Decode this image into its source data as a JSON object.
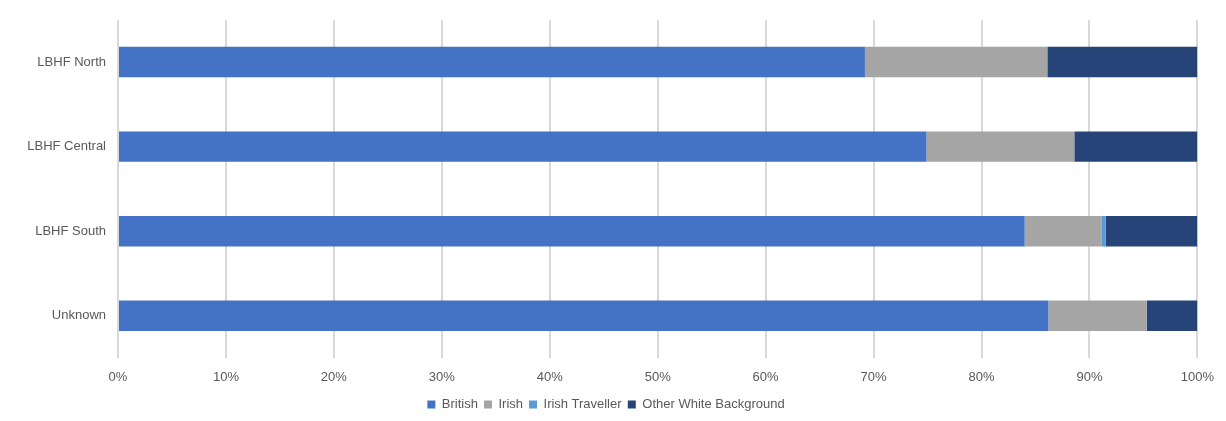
{
  "chart_data": {
    "type": "bar",
    "orientation": "horizontal",
    "stacked": true,
    "categories": [
      "LBHF North",
      "LBHF Central",
      "LBHF South",
      "Unknown"
    ],
    "series": [
      {
        "name": "British",
        "color": "#4472c4",
        "values": [
          69.2,
          74.9,
          84.0,
          86.2
        ]
      },
      {
        "name": "Irish",
        "color": "#a5a5a5",
        "values": [
          16.9,
          13.7,
          7.1,
          9.1
        ]
      },
      {
        "name": "Irish Traveller",
        "color": "#5b9bd5",
        "values": [
          0,
          0,
          0.4,
          0
        ]
      },
      {
        "name": "Other White Background",
        "color": "#264478",
        "values": [
          13.9,
          11.4,
          8.5,
          4.7
        ]
      }
    ],
    "xlim": [
      0,
      100
    ],
    "xticks": [
      {
        "value": 0,
        "label": "0%"
      },
      {
        "value": 10,
        "label": "10%"
      },
      {
        "value": 20,
        "label": "20%"
      },
      {
        "value": 30,
        "label": "30%"
      },
      {
        "value": 40,
        "label": "40%"
      },
      {
        "value": 50,
        "label": "50%"
      },
      {
        "value": 60,
        "label": "60%"
      },
      {
        "value": 70,
        "label": "70%"
      },
      {
        "value": 80,
        "label": "80%"
      },
      {
        "value": 90,
        "label": "90%"
      },
      {
        "value": 100,
        "label": "100%"
      }
    ],
    "grid": "x",
    "legend": "bottom"
  }
}
